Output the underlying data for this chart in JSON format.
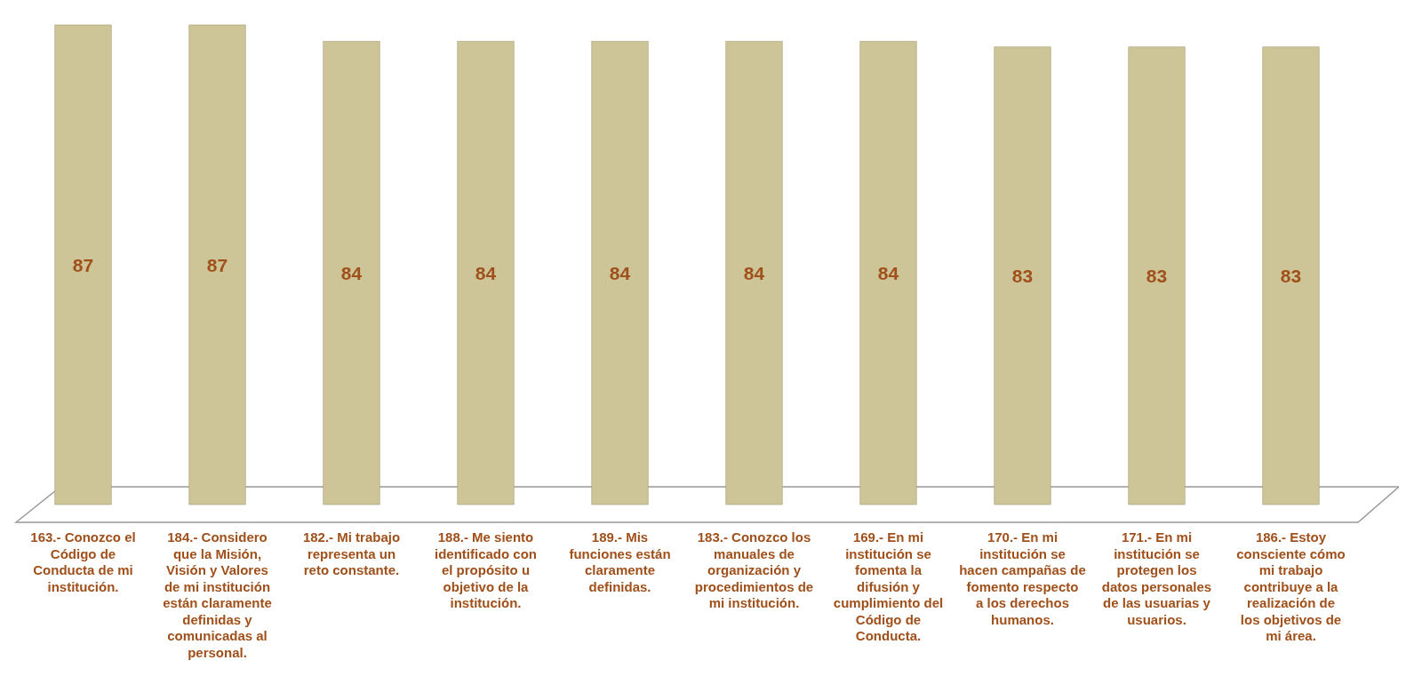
{
  "chart_data": {
    "type": "bar",
    "categories": [
      "163.- Conozco el Código de Conducta de mi institución.",
      "184.- Considero que la Misión, Visión y Valores de mi institución están claramente definidas y comunicadas al personal.",
      "182.- Mi trabajo representa un reto constante.",
      "188.- Me siento identificado con el propósito u objetivo de la institución.",
      "189.- Mis funciones están claramente definidas.",
      "183.- Conozco los manuales de organización y procedimientos de mi institución.",
      "169.- En mi institución se fomenta la difusión y cumplimiento del Código de Conducta.",
      "170.- En mi institución se hacen campañas de fomento respecto a los derechos humanos.",
      "171.- En mi institución se protegen los datos personales de las usuarias y usuarios.",
      "186.- Estoy consciente cómo mi trabajo contribuye a la realización de los objetivos de mi área."
    ],
    "values": [
      87,
      87,
      84,
      84,
      84,
      84,
      84,
      83,
      83,
      83
    ],
    "color": "#cdc597",
    "data_labels": true
  }
}
